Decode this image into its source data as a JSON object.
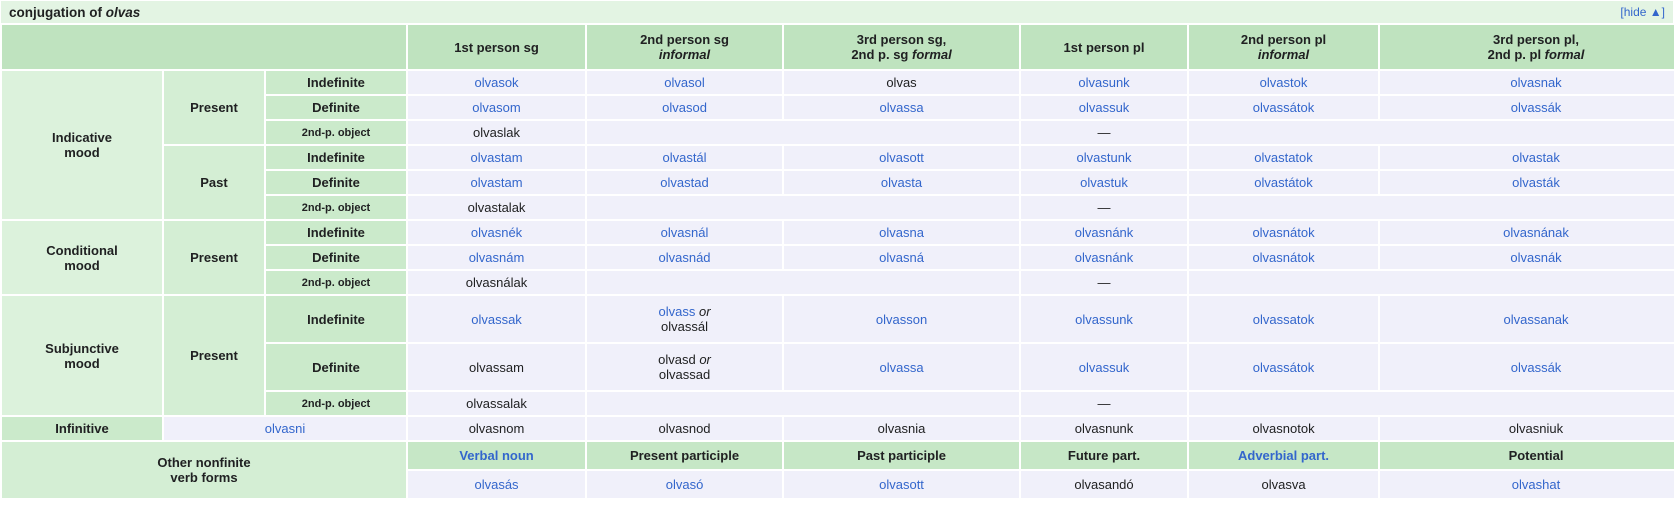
{
  "title": {
    "prefix": "conjugation of ",
    "verb": "olvas"
  },
  "hide_link": {
    "text": "[hide ▲]"
  },
  "colors": {
    "link_blue": "#3366cc",
    "title_bar_bg": "#e3f4e3",
    "person_header_bg": "#bfe3bf",
    "mood_label_bg": "#dcf2dc",
    "tense_label_bg": "#d4eed4",
    "definiteness_label_bg": "#cbeacb",
    "nonfinite_header_bg": "#c6e7c6",
    "data_cell_bg": "#f0f0fa",
    "text": "#202122"
  },
  "table": {
    "person_headers": [
      {
        "lines": [
          [
            {
              "t": "1st person sg"
            }
          ]
        ]
      },
      {
        "lines": [
          [
            {
              "t": "2nd person sg"
            }
          ],
          [
            {
              "t": "informal",
              "i": true
            }
          ]
        ]
      },
      {
        "lines": [
          [
            {
              "t": "3rd person sg,"
            }
          ],
          [
            {
              "t": "2nd p. sg "
            },
            {
              "t": "formal",
              "i": true
            }
          ]
        ]
      },
      {
        "lines": [
          [
            {
              "t": "1st person pl"
            }
          ]
        ]
      },
      {
        "lines": [
          [
            {
              "t": "2nd person pl"
            }
          ],
          [
            {
              "t": "informal",
              "i": true
            }
          ]
        ]
      },
      {
        "lines": [
          [
            {
              "t": "3rd person pl,"
            }
          ],
          [
            {
              "t": "2nd p. pl "
            },
            {
              "t": "formal",
              "i": true
            }
          ]
        ]
      }
    ],
    "rows": [
      {
        "h": "std",
        "cells": [
          {
            "kind": "mood",
            "rowspan": 6,
            "lines": [
              [
                {
                  "t": "Indicative"
                }
              ],
              [
                {
                  "t": "mood"
                }
              ]
            ]
          },
          {
            "kind": "tense",
            "rowspan": 3,
            "text": "Present"
          },
          {
            "kind": "def",
            "text": "Indefinite"
          },
          {
            "kind": "data",
            "text": "olvasok",
            "link": true
          },
          {
            "kind": "data",
            "text": "olvasol",
            "link": true
          },
          {
            "kind": "data",
            "text": "olvas"
          },
          {
            "kind": "data",
            "text": "olvasunk",
            "link": true
          },
          {
            "kind": "data",
            "text": "olvastok",
            "link": true
          },
          {
            "kind": "data",
            "text": "olvasnak",
            "link": true
          }
        ]
      },
      {
        "h": "std",
        "cells": [
          {
            "kind": "def",
            "text": "Definite"
          },
          {
            "kind": "data",
            "text": "olvasom",
            "link": true
          },
          {
            "kind": "data",
            "text": "olvasod",
            "link": true
          },
          {
            "kind": "data",
            "text": "olvassa",
            "link": true
          },
          {
            "kind": "data",
            "text": "olvassuk",
            "link": true
          },
          {
            "kind": "data",
            "text": "olvassátok",
            "link": true
          },
          {
            "kind": "data",
            "text": "olvassák",
            "link": true
          }
        ]
      },
      {
        "h": "std",
        "cells": [
          {
            "kind": "def-small",
            "text": "2nd-p. object"
          },
          {
            "kind": "data",
            "text": "olvaslak"
          },
          {
            "kind": "data",
            "colspan": 2,
            "text": ""
          },
          {
            "kind": "data",
            "text": "—"
          },
          {
            "kind": "data",
            "colspan": 2,
            "text": ""
          }
        ]
      },
      {
        "h": "std",
        "cells": [
          {
            "kind": "tense",
            "rowspan": 3,
            "text": "Past"
          },
          {
            "kind": "def",
            "text": "Indefinite"
          },
          {
            "kind": "data",
            "text": "olvastam",
            "link": true
          },
          {
            "kind": "data",
            "text": "olvastál",
            "link": true
          },
          {
            "kind": "data",
            "text": "olvasott",
            "link": true
          },
          {
            "kind": "data",
            "text": "olvastunk",
            "link": true
          },
          {
            "kind": "data",
            "text": "olvastatok",
            "link": true
          },
          {
            "kind": "data",
            "text": "olvastak",
            "link": true
          }
        ]
      },
      {
        "h": "std",
        "cells": [
          {
            "kind": "def",
            "text": "Definite"
          },
          {
            "kind": "data",
            "text": "olvastam",
            "link": true
          },
          {
            "kind": "data",
            "text": "olvastad",
            "link": true
          },
          {
            "kind": "data",
            "text": "olvasta",
            "link": true
          },
          {
            "kind": "data",
            "text": "olvastuk",
            "link": true
          },
          {
            "kind": "data",
            "text": "olvastátok",
            "link": true
          },
          {
            "kind": "data",
            "text": "olvasták",
            "link": true
          }
        ]
      },
      {
        "h": "std",
        "cells": [
          {
            "kind": "def-small",
            "text": "2nd-p. object"
          },
          {
            "kind": "data",
            "text": "olvastalak"
          },
          {
            "kind": "data",
            "colspan": 2,
            "text": ""
          },
          {
            "kind": "data",
            "text": "—"
          },
          {
            "kind": "data",
            "colspan": 2,
            "text": ""
          }
        ]
      },
      {
        "h": "std",
        "cells": [
          {
            "kind": "mood",
            "rowspan": 3,
            "lines": [
              [
                {
                  "t": "Conditional"
                }
              ],
              [
                {
                  "t": "mood"
                }
              ]
            ]
          },
          {
            "kind": "tense",
            "rowspan": 3,
            "text": "Present"
          },
          {
            "kind": "def",
            "text": "Indefinite"
          },
          {
            "kind": "data",
            "text": "olvasnék",
            "link": true
          },
          {
            "kind": "data",
            "text": "olvasnál",
            "link": true
          },
          {
            "kind": "data",
            "text": "olvasna",
            "link": true
          },
          {
            "kind": "data",
            "text": "olvasnánk",
            "link": true
          },
          {
            "kind": "data",
            "text": "olvasnátok",
            "link": true
          },
          {
            "kind": "data",
            "text": "olvasnának",
            "link": true
          }
        ]
      },
      {
        "h": "std",
        "cells": [
          {
            "kind": "def",
            "text": "Definite"
          },
          {
            "kind": "data",
            "text": "olvasnám",
            "link": true
          },
          {
            "kind": "data",
            "text": "olvasnád",
            "link": true
          },
          {
            "kind": "data",
            "text": "olvasná",
            "link": true
          },
          {
            "kind": "data",
            "text": "olvasnánk",
            "link": true
          },
          {
            "kind": "data",
            "text": "olvasnátok",
            "link": true
          },
          {
            "kind": "data",
            "text": "olvasnák",
            "link": true
          }
        ]
      },
      {
        "h": "std",
        "cells": [
          {
            "kind": "def-small",
            "text": "2nd-p. object"
          },
          {
            "kind": "data",
            "text": "olvasnálak"
          },
          {
            "kind": "data",
            "colspan": 2,
            "text": ""
          },
          {
            "kind": "data",
            "text": "—"
          },
          {
            "kind": "data",
            "colspan": 2,
            "text": ""
          }
        ]
      },
      {
        "h": "tall",
        "cells": [
          {
            "kind": "mood",
            "rowspan": 3,
            "lines": [
              [
                {
                  "t": "Subjunctive"
                }
              ],
              [
                {
                  "t": "mood"
                }
              ]
            ]
          },
          {
            "kind": "tense",
            "rowspan": 3,
            "text": "Present"
          },
          {
            "kind": "def",
            "text": "Indefinite"
          },
          {
            "kind": "data",
            "text": "olvassak",
            "link": true
          },
          {
            "kind": "data",
            "lines": [
              [
                {
                  "t": "olvass",
                  "link": true
                },
                {
                  "t": " or",
                  "i": true
                }
              ],
              [
                {
                  "t": "olvassál"
                }
              ]
            ]
          },
          {
            "kind": "data",
            "text": "olvasson",
            "link": true
          },
          {
            "kind": "data",
            "text": "olvassunk",
            "link": true
          },
          {
            "kind": "data",
            "text": "olvassatok",
            "link": true
          },
          {
            "kind": "data",
            "text": "olvassanak",
            "link": true
          }
        ]
      },
      {
        "h": "tall",
        "cells": [
          {
            "kind": "def",
            "text": "Definite"
          },
          {
            "kind": "data",
            "text": "olvassam"
          },
          {
            "kind": "data",
            "lines": [
              [
                {
                  "t": "olvasd"
                },
                {
                  "t": " or",
                  "i": true
                }
              ],
              [
                {
                  "t": "olvassad"
                }
              ]
            ]
          },
          {
            "kind": "data",
            "text": "olvassa",
            "link": true
          },
          {
            "kind": "data",
            "text": "olvassuk",
            "link": true
          },
          {
            "kind": "data",
            "text": "olvassátok",
            "link": true
          },
          {
            "kind": "data",
            "text": "olvassák",
            "link": true
          }
        ]
      },
      {
        "h": "std",
        "cells": [
          {
            "kind": "def-small",
            "text": "2nd-p. object"
          },
          {
            "kind": "data",
            "text": "olvassalak"
          },
          {
            "kind": "data",
            "colspan": 2,
            "text": ""
          },
          {
            "kind": "data",
            "text": "—"
          },
          {
            "kind": "data",
            "colspan": 2,
            "text": ""
          }
        ]
      },
      {
        "h": "std",
        "cells": [
          {
            "kind": "inf-label",
            "text": "Infinitive"
          },
          {
            "kind": "inf-form",
            "colspan": 2,
            "text": "olvasni",
            "link": true
          },
          {
            "kind": "data",
            "text": "olvasnom"
          },
          {
            "kind": "data",
            "text": "olvasnod"
          },
          {
            "kind": "data",
            "text": "olvasnia"
          },
          {
            "kind": "data",
            "text": "olvasnunk"
          },
          {
            "kind": "data",
            "text": "olvasnotok"
          },
          {
            "kind": "data",
            "text": "olvasniuk"
          }
        ]
      },
      {
        "h": "last",
        "cells": [
          {
            "kind": "onf-label",
            "colspan": 3,
            "rowspan": 2,
            "lines": [
              [
                {
                  "t": "Other nonfinite"
                }
              ],
              [
                {
                  "t": "verb forms"
                }
              ]
            ]
          },
          {
            "kind": "nf-head",
            "text": "Verbal noun",
            "link": true
          },
          {
            "kind": "nf-head",
            "text": "Present participle"
          },
          {
            "kind": "nf-head",
            "text": "Past participle"
          },
          {
            "kind": "nf-head",
            "text": "Future part."
          },
          {
            "kind": "nf-head",
            "text": "Adverbial part.",
            "link": true
          },
          {
            "kind": "nf-head",
            "text": "Potential"
          }
        ]
      },
      {
        "h": "last",
        "cells": [
          {
            "kind": "data",
            "text": "olvasás",
            "link": true
          },
          {
            "kind": "data",
            "text": "olvasó",
            "link": true
          },
          {
            "kind": "data",
            "text": "olvasott",
            "link": true
          },
          {
            "kind": "data",
            "text": "olvasandó"
          },
          {
            "kind": "data",
            "text": "olvasva"
          },
          {
            "kind": "data",
            "text": "olvashat",
            "link": true
          }
        ]
      }
    ]
  }
}
